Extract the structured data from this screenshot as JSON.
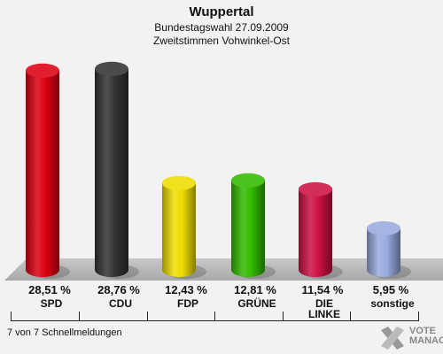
{
  "chart_data": {
    "type": "bar",
    "title": "Wuppertal",
    "subtitles": [
      "Bundestagswahl 27.09.2009",
      "Zweitstimmen Vohwinkel-Ost"
    ],
    "categories": [
      "SPD",
      "CDU",
      "FDP",
      "GRÜNE",
      "DIE LINKE",
      "sonstige"
    ],
    "values": [
      28.51,
      28.76,
      12.43,
      12.81,
      11.54,
      5.95
    ],
    "value_labels": [
      "28,51 %",
      "28,76 %",
      "12,43 %",
      "12,81 %",
      "11,54 %",
      "5,95 %"
    ],
    "colors": [
      "#dd0011",
      "#333333",
      "#eedd00",
      "#33bb00",
      "#cc1144",
      "#99aadd"
    ],
    "ylim": [
      0,
      30
    ],
    "grid": false
  },
  "footer": "7 von 7 Schnellmeldungen",
  "logo": {
    "line1": "VOTE",
    "line2": "MANAGER",
    "icon": "vote-manager-x-icon"
  }
}
